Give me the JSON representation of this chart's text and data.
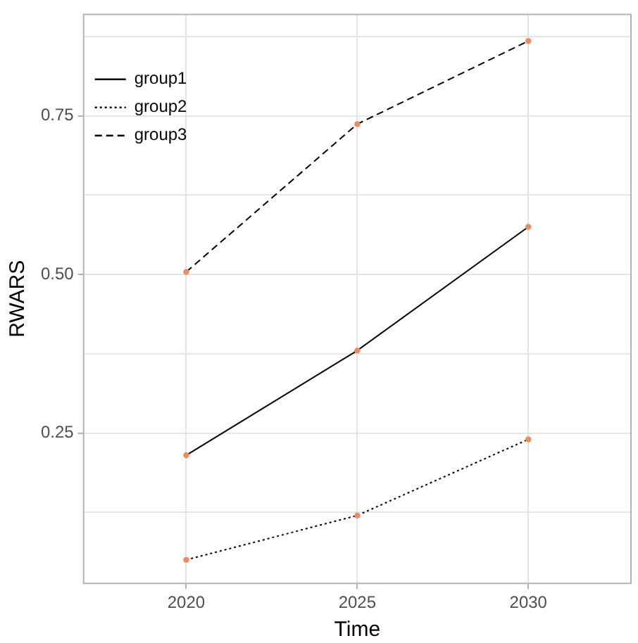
{
  "chart_data": {
    "type": "line",
    "xlabel": "Time",
    "ylabel": "RWARS",
    "x": [
      2020,
      2025,
      2030
    ],
    "series": [
      {
        "name": "group1",
        "color": "#000000",
        "line_style": "solid",
        "values": [
          0.215,
          0.38,
          0.575
        ]
      },
      {
        "name": "group2",
        "color": "#000000",
        "line_style": "dotted",
        "values": [
          0.05,
          0.12,
          0.24
        ]
      },
      {
        "name": "group3",
        "color": "#000000",
        "line_style": "dashed",
        "values": [
          0.504,
          0.737,
          0.868
        ]
      }
    ],
    "xlim": [
      2017,
      2033
    ],
    "xticks": [
      2020,
      2025,
      2030
    ],
    "ylim": [
      0.013,
      0.91
    ],
    "yticks": [
      {
        "value": 0.125,
        "label": null
      },
      {
        "value": 0.25,
        "label": "0.25"
      },
      {
        "value": 0.375,
        "label": null
      },
      {
        "value": 0.5,
        "label": "0.50"
      },
      {
        "value": 0.625,
        "label": null
      },
      {
        "value": 0.75,
        "label": "0.75"
      },
      {
        "value": 0.875,
        "label": null
      }
    ],
    "grid": true,
    "legend": "top left",
    "marker": "circle"
  }
}
